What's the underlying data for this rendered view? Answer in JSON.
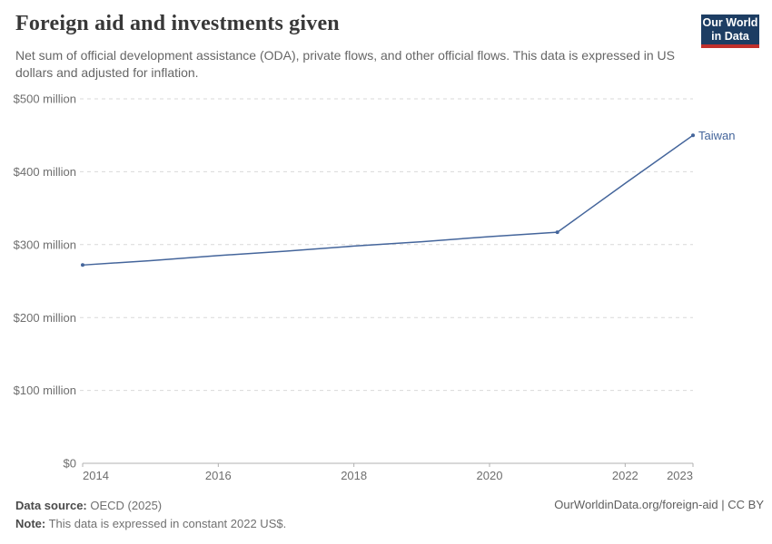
{
  "header": {
    "title": "Foreign aid and investments given",
    "subtitle": "Net sum of official development assistance (ODA), private flows, and other official flows. This data is expressed in US dollars and adjusted for inflation.",
    "logo": {
      "line1": "Our World",
      "line2": "in Data",
      "bg_color": "#1d3d63",
      "accent_color": "#c0302c"
    }
  },
  "chart_data": {
    "type": "line",
    "title": "Foreign aid and investments given",
    "x": [
      2014,
      2015,
      2016,
      2017,
      2018,
      2019,
      2020,
      2021,
      2022,
      2023
    ],
    "series": [
      {
        "name": "Taiwan",
        "values": [
          272,
          278,
          285,
          291,
          298,
          304,
          311,
          317,
          384,
          450
        ],
        "color": "#44659b"
      }
    ],
    "xlabel": "",
    "ylabel": "",
    "xlim": [
      2014,
      2023
    ],
    "ylim": [
      0,
      500
    ],
    "y_ticks": [
      {
        "value": 0,
        "label": "$0"
      },
      {
        "value": 100,
        "label": "$100 million"
      },
      {
        "value": 200,
        "label": "$200 million"
      },
      {
        "value": 300,
        "label": "$300 million"
      },
      {
        "value": 400,
        "label": "$400 million"
      },
      {
        "value": 500,
        "label": "$500 million"
      }
    ],
    "x_ticks": [
      {
        "value": 2014,
        "label": "2014"
      },
      {
        "value": 2016,
        "label": "2016"
      },
      {
        "value": 2018,
        "label": "2018"
      },
      {
        "value": 2020,
        "label": "2020"
      },
      {
        "value": 2022,
        "label": "2022"
      },
      {
        "value": 2023,
        "label": "2023"
      }
    ],
    "grid": "horizontal-dashed",
    "legend_position": "end-of-line-label",
    "dot_years": [
      2014,
      2021,
      2023
    ],
    "colors": {
      "gridline": "#d9d9d9",
      "axis": "#b0b0b0",
      "tick_label": "#6e6e6e"
    }
  },
  "footer": {
    "source_label": "Data source:",
    "source_value": "OECD (2025)",
    "note_label": "Note:",
    "note_value": "This data is expressed in constant 2022 US$.",
    "link": "OurWorldinData.org/foreign-aid | CC BY"
  }
}
